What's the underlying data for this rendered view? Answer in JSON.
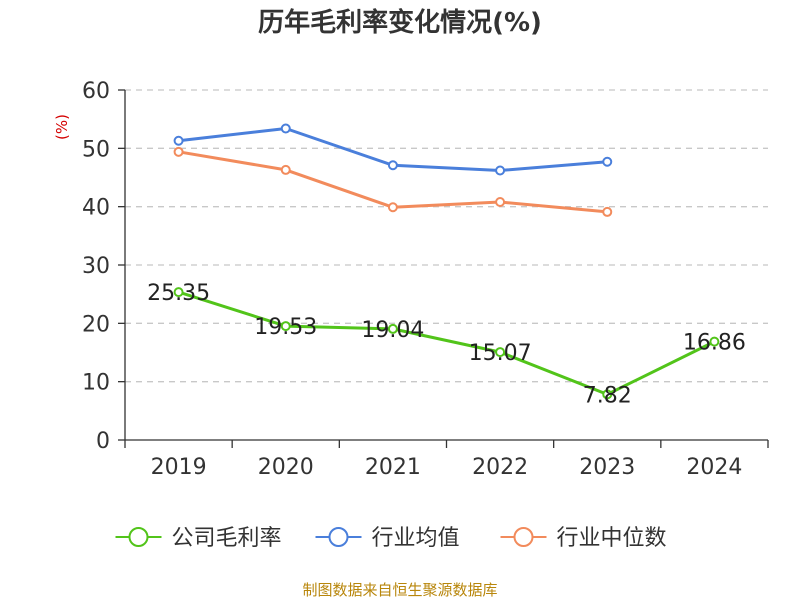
{
  "chart_data": {
    "type": "line",
    "title": "历年毛利率变化情况(%)",
    "ylabel": "(%)",
    "xlabel": "",
    "categories": [
      "2019",
      "2020",
      "2021",
      "2022",
      "2023",
      "2024"
    ],
    "y_ticks": [
      0,
      10,
      20,
      30,
      40,
      50,
      60
    ],
    "ylim": [
      0,
      60
    ],
    "grid": "horizontal-dashed",
    "legend_position": "bottom",
    "series": [
      {
        "name": "公司毛利率",
        "color": "#52c41a",
        "values": [
          25.35,
          19.53,
          19.04,
          15.07,
          7.82,
          16.86
        ],
        "labels": [
          "25.35",
          "19.53",
          "19.04",
          "15.07",
          "7.82",
          "16.86"
        ],
        "show_labels": true
      },
      {
        "name": "行业均值",
        "color": "#4a7fdb",
        "values": [
          51.3,
          53.4,
          47.1,
          46.2,
          47.7,
          null
        ],
        "show_labels": false
      },
      {
        "name": "行业中位数",
        "color": "#f28b5c",
        "values": [
          49.4,
          46.3,
          39.9,
          40.8,
          39.1,
          null
        ],
        "show_labels": false
      }
    ],
    "source": "制图数据来自恒生聚源数据库"
  }
}
